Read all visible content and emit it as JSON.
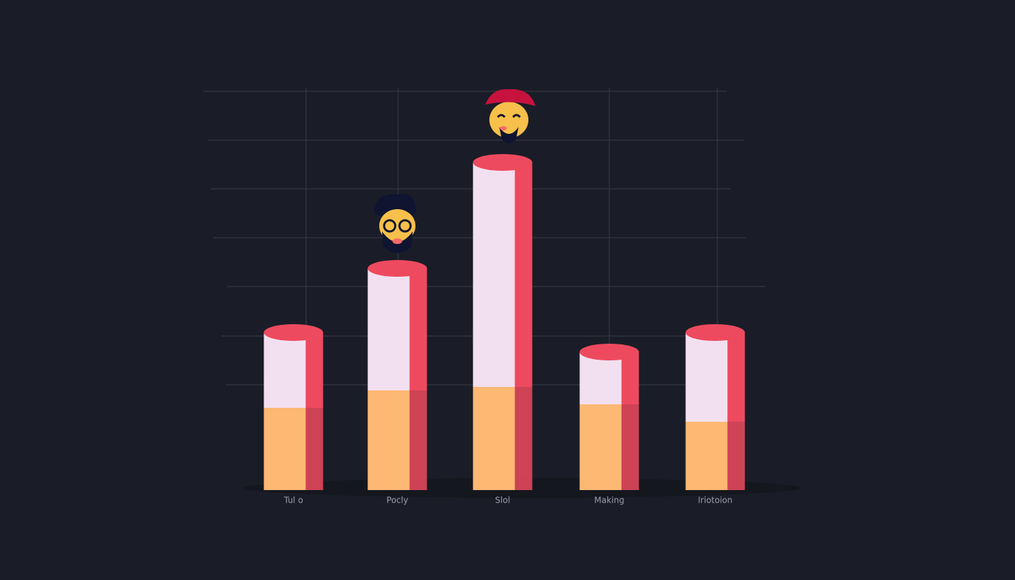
{
  "chart_data": {
    "type": "stacked-bar",
    "categories": [
      "Tul o",
      "Pocly",
      "Slol",
      "Making",
      "Iriotoion"
    ],
    "series": [
      {
        "color": "#fdb874",
        "values": [
          118,
          143,
          148,
          123,
          98
        ]
      },
      {
        "color": "#f2e0f0",
        "values": [
          108,
          175,
          322,
          75,
          128
        ]
      }
    ],
    "side_color": "#ee4a5f",
    "ylim": [
      0,
      500
    ]
  }
}
